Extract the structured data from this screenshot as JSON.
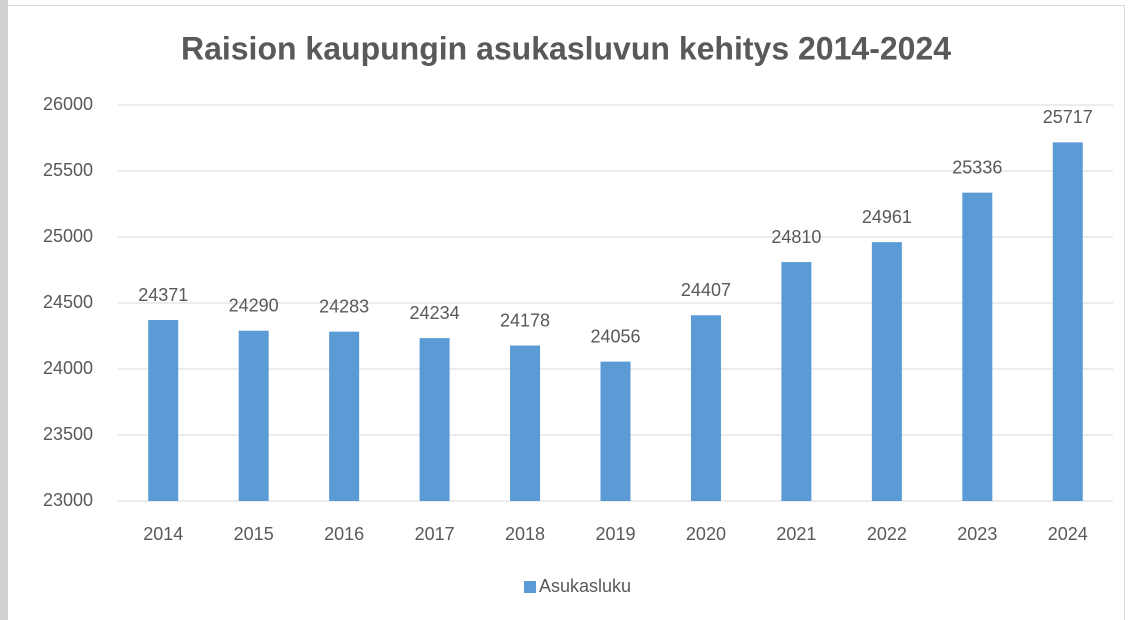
{
  "chart_data": {
    "type": "bar",
    "title": "Raision kaupungin asukasluvun kehitys 2014-2024",
    "categories": [
      "2014",
      "2015",
      "2016",
      "2017",
      "2018",
      "2019",
      "2020",
      "2021",
      "2022",
      "2023",
      "2024"
    ],
    "series": [
      {
        "name": "Asukasluku",
        "color": "#5b9bd5",
        "values": [
          24371,
          24290,
          24283,
          24234,
          24178,
          24056,
          24407,
          24810,
          24961,
          25336,
          25717
        ]
      }
    ],
    "ylim": [
      23000,
      26000
    ],
    "yticks": [
      23000,
      23500,
      24000,
      24500,
      25000,
      25500,
      26000
    ],
    "grid": true,
    "legend": "bottom"
  }
}
